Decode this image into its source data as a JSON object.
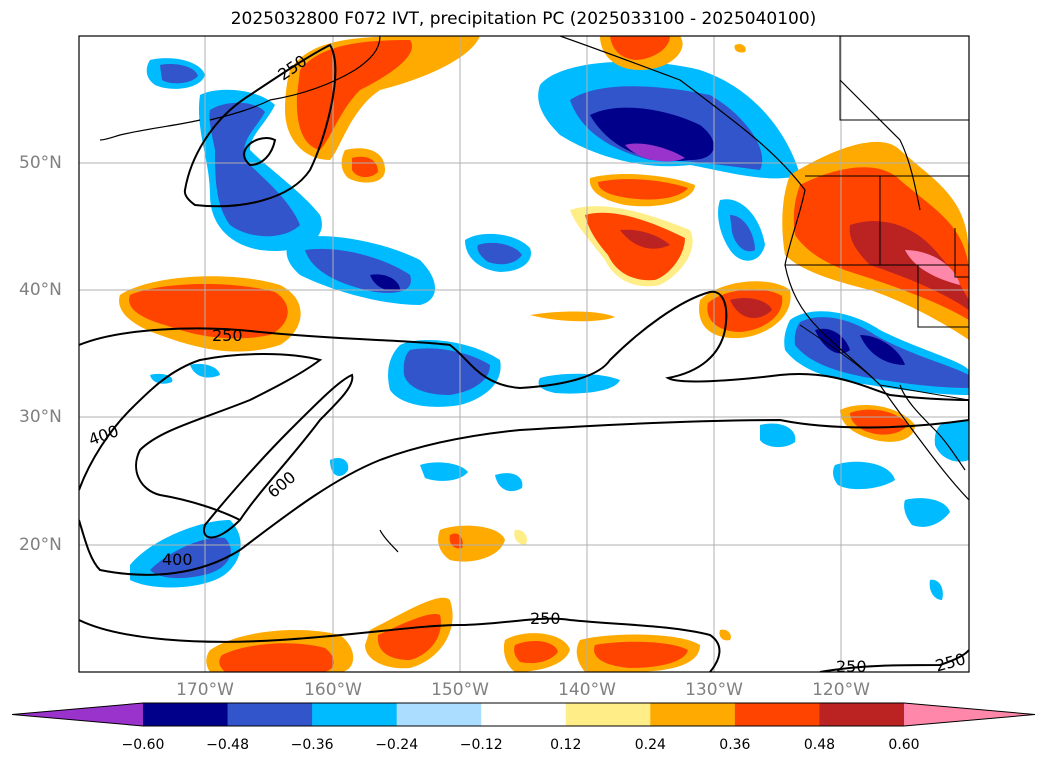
{
  "title": "2025032800 F072 IVT, precipitation PC (2025033100 - 2025040100)",
  "axes": {
    "lon_labels": [
      "170°W",
      "160°W",
      "150°W",
      "140°W",
      "130°W",
      "120°W"
    ],
    "lat_labels": [
      "50°N",
      "40°N",
      "30°N",
      "20°N"
    ]
  },
  "contour_labels": [
    "250",
    "250",
    "400",
    "600",
    "400",
    "250",
    "250",
    "250"
  ],
  "colorbar": {
    "colors": [
      "#9933cc",
      "#00008b",
      "#3355cc",
      "#00bbff",
      "#aaddff",
      "#ffffff",
      "#ffee88",
      "#ffaa00",
      "#ff4400",
      "#bb2222",
      "#ff88aa"
    ],
    "tick_labels": [
      "−0.60",
      "−0.48",
      "−0.36",
      "−0.24",
      "−0.12",
      "0.12",
      "0.24",
      "0.36",
      "0.48",
      "0.60"
    ]
  }
}
